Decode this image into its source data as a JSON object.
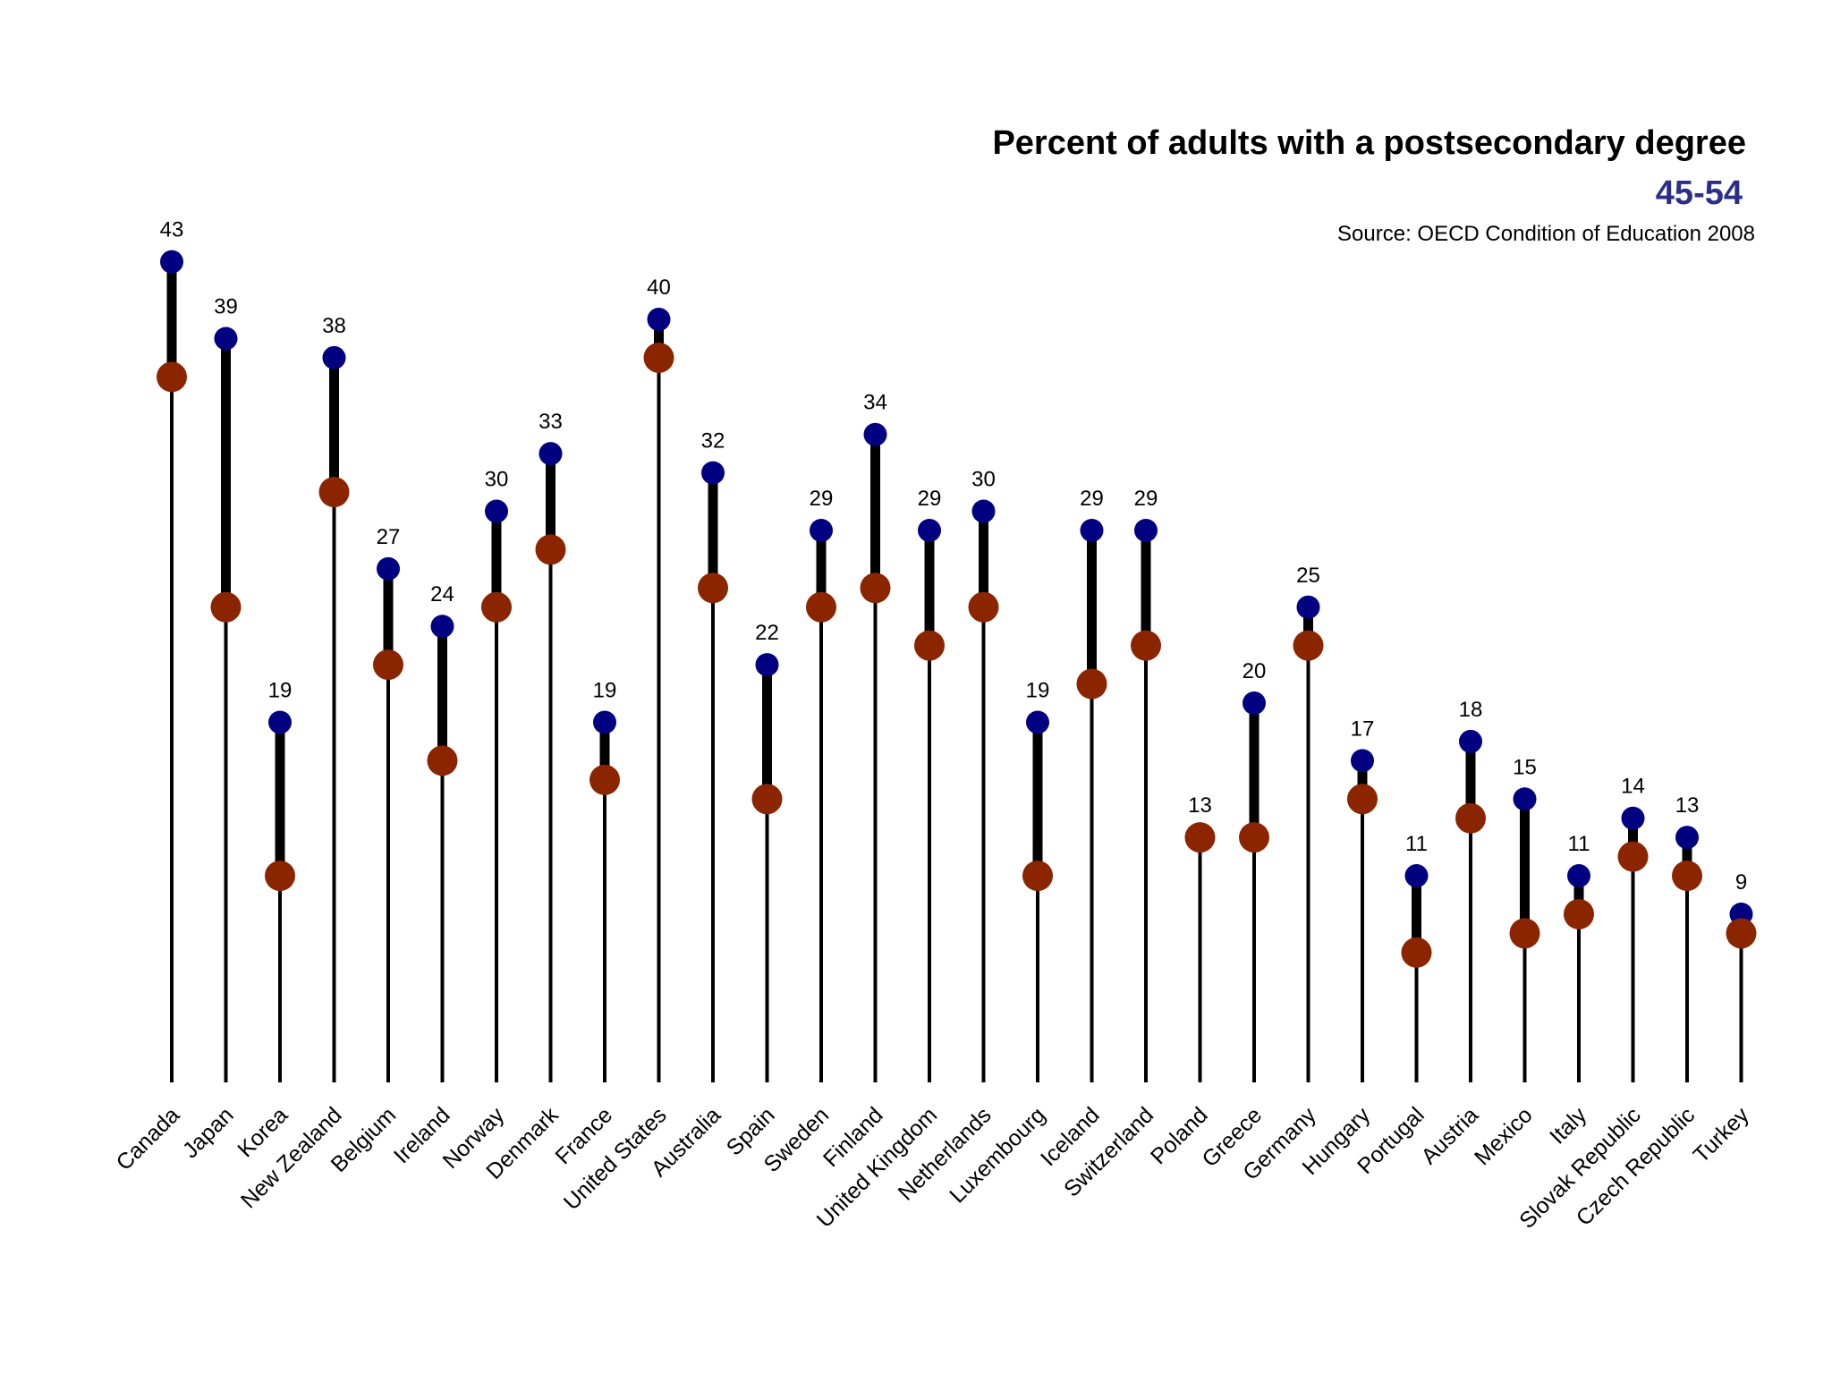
{
  "colors": {
    "series_45_54": "#000080",
    "series_other": "#8b2500",
    "subtitle": "#2e2e8a",
    "stems": "#000000"
  },
  "chart_data": {
    "type": "dot-range",
    "title": "Percent of adults with a postsecondary degree",
    "subtitle": "45-54",
    "source": "Source: OECD Condition of Education 2008",
    "ylim": [
      0,
      45
    ],
    "grid": false,
    "categories": [
      "Canada",
      "Japan",
      "Korea",
      "New Zealand",
      "Belgium",
      "Ireland",
      "Norway",
      "Denmark",
      "France",
      "United States",
      "Australia",
      "Spain",
      "Sweden",
      "Finland",
      "United Kingdom",
      "Netherlands",
      "Luxembourg",
      "Iceland",
      "Switzerland",
      "Poland",
      "Greece",
      "Germany",
      "Hungary",
      "Portugal",
      "Austria",
      "Mexico",
      "Italy",
      "Slovak Republic",
      "Czech Republic",
      "Turkey"
    ],
    "series": [
      {
        "name": "45-54",
        "values": [
          43,
          39,
          19,
          38,
          27,
          24,
          30,
          33,
          19,
          40,
          32,
          22,
          29,
          34,
          29,
          30,
          19,
          29,
          29,
          13,
          20,
          25,
          17,
          11,
          18,
          15,
          11,
          14,
          13,
          9
        ]
      },
      {
        "values": [
          37,
          25,
          11,
          31,
          22,
          17,
          25,
          28,
          16,
          38,
          26,
          15,
          25,
          26,
          23,
          25,
          11,
          21,
          23,
          13,
          13,
          23,
          15,
          7,
          14,
          8,
          9,
          12,
          11,
          8
        ]
      }
    ]
  }
}
